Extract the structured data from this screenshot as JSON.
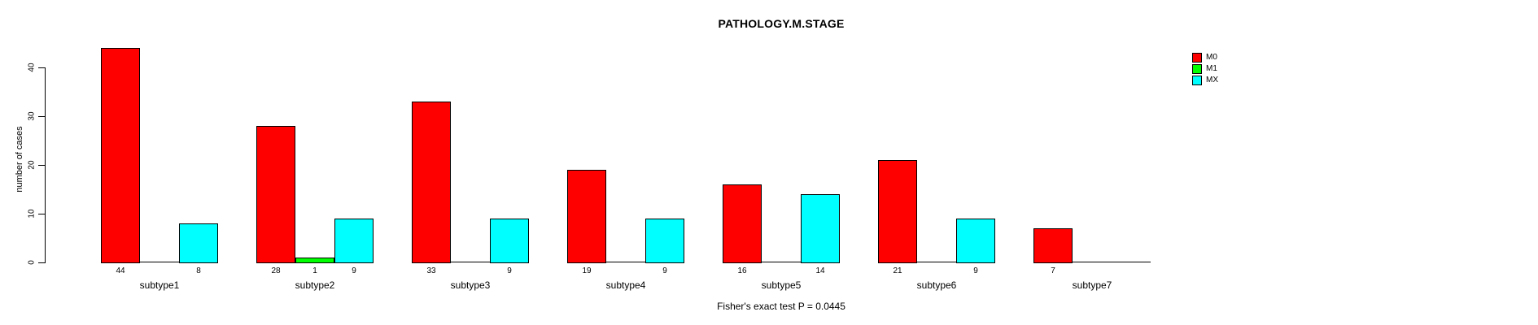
{
  "chart_data": {
    "type": "bar",
    "title": "PATHOLOGY.M.STAGE",
    "ylabel": "number of cases",
    "xlabel": "",
    "annotation": "Fisher's exact test P = 0.0445",
    "categories": [
      "subtype1",
      "subtype2",
      "subtype3",
      "subtype4",
      "subtype5",
      "subtype6",
      "subtype7"
    ],
    "series": [
      {
        "name": "M0",
        "color": "#FF0000",
        "values": [
          44,
          28,
          33,
          19,
          16,
          21,
          7
        ]
      },
      {
        "name": "M1",
        "color": "#00FF00",
        "values": [
          0,
          1,
          0,
          0,
          0,
          0,
          0
        ]
      },
      {
        "name": "MX",
        "color": "#00FFFF",
        "values": [
          8,
          9,
          9,
          9,
          14,
          9,
          0
        ]
      }
    ],
    "bar_value_labels_shown": [
      [
        "44",
        "8"
      ],
      [
        "28",
        "1",
        "9"
      ],
      [
        "33",
        "9"
      ],
      [
        "19",
        "9"
      ],
      [
        "16",
        "14"
      ],
      [
        "21",
        "9"
      ],
      [
        "7"
      ]
    ],
    "ylim": [
      0,
      45
    ],
    "yticks": [
      0,
      10,
      20,
      30,
      40
    ],
    "grid": false,
    "legend_position": "top-right",
    "legend_border": false
  },
  "colors": {
    "background": "#FFFFFF",
    "bar_border": "#000000",
    "text": "#000000"
  }
}
